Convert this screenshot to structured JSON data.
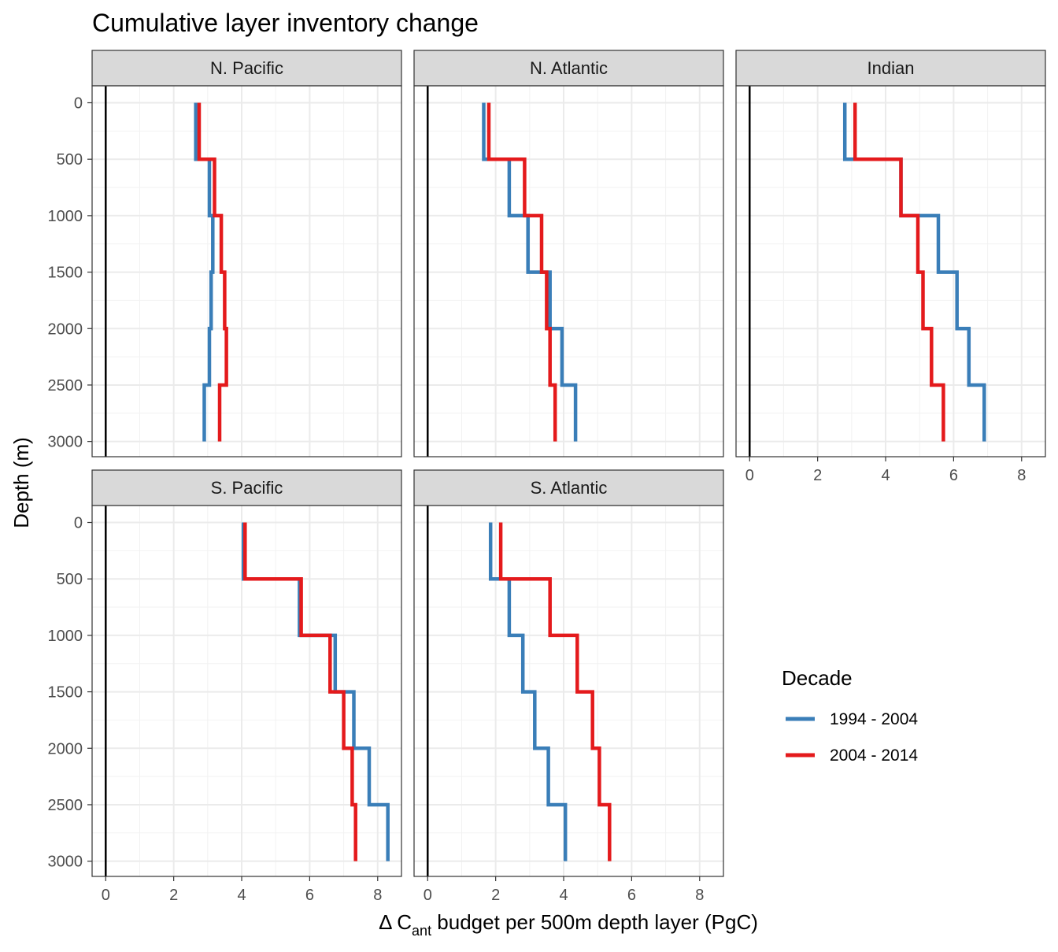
{
  "chart_data": {
    "type": "line",
    "title": "Cumulative layer inventory change",
    "xlabel_prefix": "Δ C",
    "xlabel_subscript": "ant",
    "xlabel_suffix": " budget per 500m depth layer (PgC)",
    "ylabel": "Depth (m)",
    "xlim": [
      0,
      8.8
    ],
    "ylim": [
      3000,
      0
    ],
    "x_ticks": [
      0,
      2,
      4,
      6,
      8
    ],
    "y_ticks": [
      0,
      500,
      1000,
      1500,
      2000,
      2500,
      3000
    ],
    "grid": true,
    "vline_x": 0,
    "legend": {
      "title": "Decade",
      "position": "right",
      "entries": [
        {
          "label": "1994 - 2004",
          "color": "#3A7EB8"
        },
        {
          "label": "2004 - 2014",
          "color": "#E41A1C"
        }
      ]
    },
    "depth_layers": [
      [
        0,
        500
      ],
      [
        500,
        1000
      ],
      [
        1000,
        1500
      ],
      [
        1500,
        2000
      ],
      [
        2000,
        2500
      ],
      [
        2500,
        3000
      ]
    ],
    "panels": [
      {
        "name": "N. Pacific",
        "series": [
          {
            "name": "1994 - 2004",
            "color": "#3A7EB8",
            "values": [
              2.65,
              3.05,
              3.15,
              3.1,
              3.05,
              2.9
            ]
          },
          {
            "name": "2004 - 2014",
            "color": "#E41A1C",
            "values": [
              2.75,
              3.2,
              3.4,
              3.5,
              3.55,
              3.35
            ]
          }
        ]
      },
      {
        "name": "N. Atlantic",
        "series": [
          {
            "name": "1994 - 2004",
            "color": "#3A7EB8",
            "values": [
              1.65,
              2.4,
              2.95,
              3.6,
              3.95,
              4.35
            ]
          },
          {
            "name": "2004 - 2014",
            "color": "#E41A1C",
            "values": [
              1.8,
              2.85,
              3.35,
              3.5,
              3.6,
              3.75
            ]
          }
        ]
      },
      {
        "name": "Indian",
        "series": [
          {
            "name": "1994 - 2004",
            "color": "#3A7EB8",
            "values": [
              2.8,
              4.45,
              5.55,
              6.1,
              6.45,
              6.9
            ]
          },
          {
            "name": "2004 - 2014",
            "color": "#E41A1C",
            "values": [
              3.1,
              4.45,
              4.95,
              5.1,
              5.35,
              5.7
            ]
          }
        ]
      },
      {
        "name": "S. Pacific",
        "series": [
          {
            "name": "1994 - 2004",
            "color": "#3A7EB8",
            "values": [
              4.05,
              5.7,
              6.75,
              7.3,
              7.75,
              8.3
            ]
          },
          {
            "name": "2004 - 2014",
            "color": "#E41A1C",
            "values": [
              4.1,
              5.75,
              6.6,
              7.0,
              7.25,
              7.35
            ]
          }
        ]
      },
      {
        "name": "S. Atlantic",
        "series": [
          {
            "name": "1994 - 2004",
            "color": "#3A7EB8",
            "values": [
              1.85,
              2.4,
              2.8,
              3.15,
              3.55,
              4.05
            ]
          },
          {
            "name": "2004 - 2014",
            "color": "#E41A1C",
            "values": [
              2.15,
              3.6,
              4.4,
              4.85,
              5.05,
              5.35
            ]
          }
        ]
      }
    ]
  }
}
